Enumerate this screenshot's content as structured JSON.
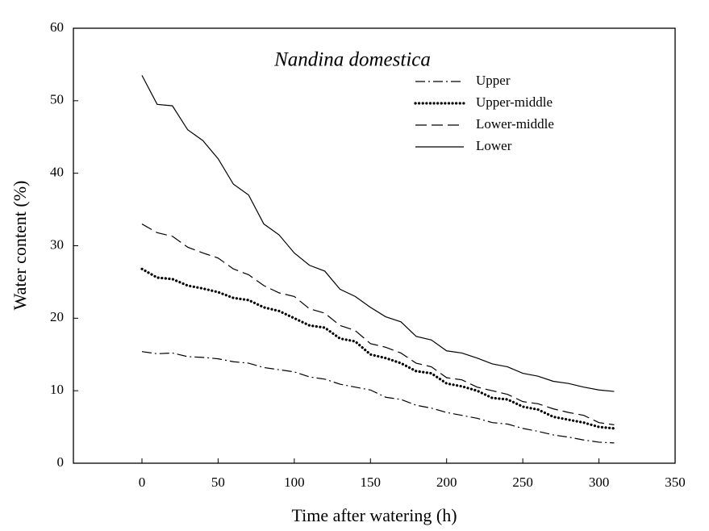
{
  "chart_data": {
    "type": "line",
    "title": "Nandina domestica",
    "x_label": "Time after watering (h)",
    "y_label": "Water content (%)",
    "xlim": [
      -45,
      350
    ],
    "ylim": [
      0,
      60
    ],
    "xticks": [
      0,
      50,
      100,
      150,
      200,
      250,
      300,
      350
    ],
    "yticks": [
      0,
      10,
      20,
      30,
      40,
      50,
      60
    ],
    "grid": false,
    "legend": "upper right",
    "x": [
      0,
      10,
      20,
      30,
      40,
      50,
      60,
      70,
      80,
      90,
      100,
      110,
      120,
      130,
      140,
      150,
      160,
      170,
      180,
      190,
      200,
      210,
      220,
      230,
      240,
      250,
      260,
      270,
      280,
      290,
      300,
      310
    ],
    "series": [
      {
        "name": "Upper",
        "color": "#000000",
        "linestyle": "dash-dot",
        "values": [
          15.4,
          15.1,
          15.2,
          14.7,
          14.6,
          14.4,
          14,
          13.8,
          13.2,
          12.9,
          12.6,
          11.9,
          11.6,
          10.9,
          10.5,
          10.1,
          9.1,
          8.8,
          8,
          7.6,
          7,
          6.6,
          6.2,
          5.6,
          5.4,
          4.8,
          4.4,
          3.9,
          3.6,
          3.2,
          2.9,
          2.8
        ]
      },
      {
        "name": "Upper-middle",
        "color": "#000000",
        "linestyle": "dotted",
        "values": [
          26.8,
          25.6,
          25.4,
          24.5,
          24.1,
          23.6,
          22.8,
          22.5,
          21.5,
          21,
          20,
          19,
          18.7,
          17.2,
          16.8,
          15,
          14.5,
          13.8,
          12.7,
          12.4,
          11,
          10.6,
          10,
          9,
          8.8,
          7.8,
          7.4,
          6.4,
          6,
          5.6,
          5,
          4.8
        ]
      },
      {
        "name": "Lower-middle",
        "color": "#000000",
        "linestyle": "dashed",
        "values": [
          33,
          31.8,
          31.3,
          29.8,
          29,
          28.3,
          26.8,
          26,
          24.5,
          23.5,
          23,
          21.3,
          20.7,
          19,
          18.3,
          16.5,
          16,
          15.2,
          13.8,
          13.3,
          11.8,
          11.5,
          10.5,
          10,
          9.5,
          8.5,
          8.2,
          7.5,
          7,
          6.6,
          5.6,
          5.3
        ]
      },
      {
        "name": "Lower",
        "color": "#000000",
        "linestyle": "solid",
        "values": [
          53.5,
          49.5,
          49.3,
          46,
          44.5,
          42,
          38.5,
          37,
          33,
          31.5,
          29,
          27.3,
          26.5,
          24,
          23,
          21.5,
          20.2,
          19.5,
          17.5,
          17,
          15.5,
          15.2,
          14.5,
          13.7,
          13.3,
          12.4,
          12,
          11.3,
          11,
          10.5,
          10.1,
          9.9
        ]
      }
    ]
  }
}
